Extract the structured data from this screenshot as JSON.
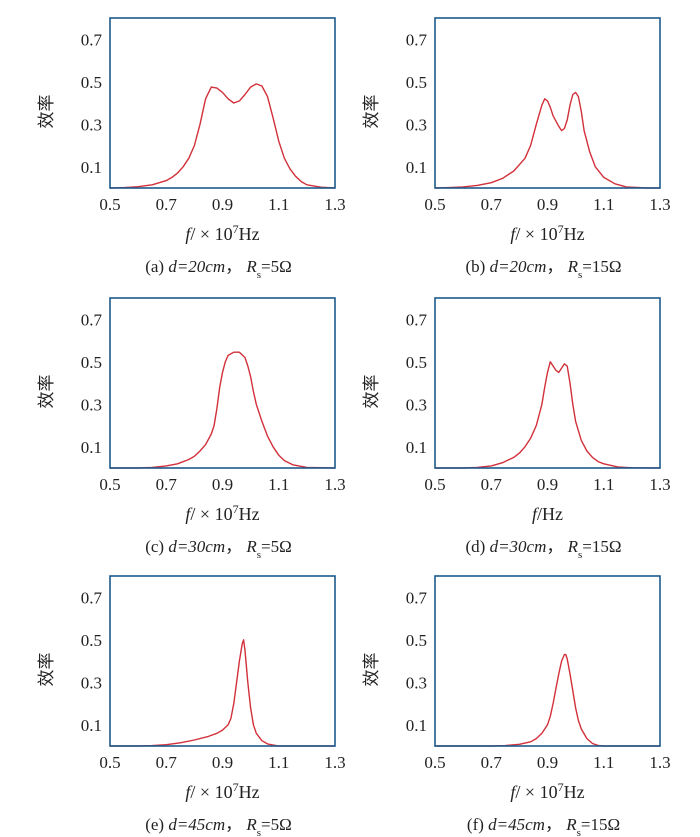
{
  "colors": {
    "frame": "#1c5a8c",
    "curve": "#d2303a"
  },
  "panels": [
    {
      "caption": {
        "label": "(a)",
        "d": "d=20cm",
        "r": "R",
        "rsub": "s",
        "rval": "=5Ω"
      },
      "xlabel": {
        "var": "f",
        "mult": "/ × 10",
        "exp": "7",
        "unit": "Hz"
      },
      "ylabel": "效率"
    },
    {
      "caption": {
        "label": "(b)",
        "d": "d=20cm",
        "r": "R",
        "rsub": "s",
        "rval": "=15Ω"
      },
      "xlabel": {
        "var": "f",
        "mult": "/ × 10",
        "exp": "7",
        "unit": "Hz"
      },
      "ylabel": "效率"
    },
    {
      "caption": {
        "label": "(c)",
        "d": "d=30cm",
        "r": "R",
        "rsub": "s",
        "rval": "=5Ω"
      },
      "xlabel": {
        "var": "f",
        "mult": "/ × 10",
        "exp": "7",
        "unit": "Hz"
      },
      "ylabel": "效率"
    },
    {
      "caption": {
        "label": "(d)",
        "d": "d=30cm",
        "r": "R",
        "rsub": "s",
        "rval": "=15Ω"
      },
      "xlabel": {
        "var": "f",
        "mult": "/",
        "exp": "",
        "unit": "Hz"
      },
      "ylabel": "效率"
    },
    {
      "caption": {
        "label": "(e)",
        "d": "d=45cm",
        "r": "R",
        "rsub": "s",
        "rval": "=5Ω"
      },
      "xlabel": {
        "var": "f",
        "mult": "/ × 10",
        "exp": "7",
        "unit": "Hz"
      },
      "ylabel": "效率"
    },
    {
      "caption": {
        "label": "(f)",
        "d": "d=45cm",
        "r": "R",
        "rsub": "s",
        "rval": "=15Ω"
      },
      "xlabel": {
        "var": "f",
        "mult": "/ × 10",
        "exp": "7",
        "unit": "Hz"
      },
      "ylabel": "效率"
    }
  ],
  "chart_data": [
    {
      "type": "line",
      "panel": "(a)",
      "xlim": [
        0.5,
        1.3
      ],
      "ylim": [
        0,
        0.8
      ],
      "xticks": [
        "0.5",
        "0.7",
        "0.9",
        "1.1",
        "1.3"
      ],
      "yticks": [
        "0.1",
        "0.3",
        "0.5",
        "0.7"
      ],
      "x": [
        0.5,
        0.55,
        0.6,
        0.65,
        0.7,
        0.72,
        0.74,
        0.76,
        0.78,
        0.8,
        0.82,
        0.84,
        0.86,
        0.88,
        0.9,
        0.92,
        0.94,
        0.96,
        0.98,
        1.0,
        1.02,
        1.04,
        1.06,
        1.08,
        1.1,
        1.12,
        1.14,
        1.16,
        1.18,
        1.2,
        1.25,
        1.3
      ],
      "y": [
        0.0,
        0.002,
        0.006,
        0.015,
        0.035,
        0.05,
        0.07,
        0.1,
        0.14,
        0.2,
        0.3,
        0.42,
        0.475,
        0.47,
        0.45,
        0.42,
        0.4,
        0.41,
        0.44,
        0.475,
        0.49,
        0.48,
        0.43,
        0.33,
        0.22,
        0.14,
        0.09,
        0.055,
        0.03,
        0.015,
        0.004,
        0.0
      ]
    },
    {
      "type": "line",
      "panel": "(b)",
      "xlim": [
        0.5,
        1.3
      ],
      "ylim": [
        0,
        0.8
      ],
      "xticks": [
        "0.5",
        "0.7",
        "0.9",
        "1.1",
        "1.3"
      ],
      "yticks": [
        "0.1",
        "0.3",
        "0.5",
        "0.7"
      ],
      "x": [
        0.5,
        0.55,
        0.6,
        0.65,
        0.7,
        0.74,
        0.78,
        0.82,
        0.84,
        0.86,
        0.88,
        0.89,
        0.9,
        0.91,
        0.92,
        0.94,
        0.95,
        0.96,
        0.97,
        0.98,
        0.99,
        1.0,
        1.01,
        1.02,
        1.03,
        1.05,
        1.07,
        1.1,
        1.14,
        1.18,
        1.25,
        1.3
      ],
      "y": [
        0.0,
        0.002,
        0.005,
        0.012,
        0.025,
        0.045,
        0.08,
        0.14,
        0.2,
        0.3,
        0.39,
        0.42,
        0.41,
        0.38,
        0.34,
        0.29,
        0.27,
        0.28,
        0.32,
        0.39,
        0.44,
        0.45,
        0.43,
        0.36,
        0.27,
        0.17,
        0.1,
        0.05,
        0.02,
        0.005,
        0.0,
        0.0
      ]
    },
    {
      "type": "line",
      "panel": "(c)",
      "xlim": [
        0.5,
        1.3
      ],
      "ylim": [
        0,
        0.8
      ],
      "xticks": [
        "0.5",
        "0.7",
        "0.9",
        "1.1",
        "1.3"
      ],
      "yticks": [
        "0.1",
        "0.3",
        "0.5",
        "0.7"
      ],
      "x": [
        0.5,
        0.6,
        0.65,
        0.7,
        0.74,
        0.78,
        0.8,
        0.82,
        0.84,
        0.86,
        0.87,
        0.88,
        0.89,
        0.9,
        0.91,
        0.92,
        0.94,
        0.96,
        0.98,
        0.99,
        1.0,
        1.01,
        1.02,
        1.04,
        1.06,
        1.08,
        1.1,
        1.12,
        1.15,
        1.2,
        1.3
      ],
      "y": [
        0.0,
        0.0,
        0.003,
        0.01,
        0.02,
        0.04,
        0.055,
        0.08,
        0.11,
        0.16,
        0.2,
        0.28,
        0.38,
        0.45,
        0.5,
        0.53,
        0.545,
        0.545,
        0.52,
        0.48,
        0.43,
        0.36,
        0.3,
        0.22,
        0.15,
        0.1,
        0.06,
        0.035,
        0.015,
        0.003,
        0.0
      ]
    },
    {
      "type": "line",
      "panel": "(d)",
      "xlim": [
        0.5,
        1.3
      ],
      "ylim": [
        0,
        0.8
      ],
      "xticks": [
        "0.5",
        "0.7",
        "0.9",
        "1.1",
        "1.3"
      ],
      "yticks": [
        "0.1",
        "0.3",
        "0.5",
        "0.7"
      ],
      "x": [
        0.5,
        0.6,
        0.65,
        0.7,
        0.74,
        0.78,
        0.8,
        0.82,
        0.84,
        0.86,
        0.88,
        0.89,
        0.9,
        0.91,
        0.92,
        0.93,
        0.94,
        0.95,
        0.96,
        0.97,
        0.98,
        0.99,
        1.0,
        1.02,
        1.04,
        1.06,
        1.08,
        1.1,
        1.15,
        1.2,
        1.3
      ],
      "y": [
        0.0,
        0.0,
        0.003,
        0.01,
        0.025,
        0.05,
        0.07,
        0.1,
        0.14,
        0.2,
        0.3,
        0.38,
        0.45,
        0.5,
        0.48,
        0.46,
        0.45,
        0.47,
        0.49,
        0.48,
        0.4,
        0.3,
        0.22,
        0.13,
        0.08,
        0.05,
        0.03,
        0.02,
        0.005,
        0.001,
        0.0
      ]
    },
    {
      "type": "line",
      "panel": "(e)",
      "xlim": [
        0.5,
        1.3
      ],
      "ylim": [
        0,
        0.8
      ],
      "xticks": [
        "0.5",
        "0.7",
        "0.9",
        "1.1",
        "1.3"
      ],
      "yticks": [
        "0.1",
        "0.3",
        "0.5",
        "0.7"
      ],
      "x": [
        0.5,
        0.6,
        0.65,
        0.7,
        0.75,
        0.8,
        0.85,
        0.88,
        0.9,
        0.92,
        0.93,
        0.94,
        0.95,
        0.96,
        0.97,
        0.975,
        0.98,
        0.99,
        1.0,
        1.01,
        1.02,
        1.04,
        1.06,
        1.08,
        1.1,
        1.2,
        1.3
      ],
      "y": [
        0.0,
        0.0,
        0.002,
        0.006,
        0.015,
        0.028,
        0.045,
        0.06,
        0.075,
        0.1,
        0.13,
        0.2,
        0.3,
        0.4,
        0.48,
        0.5,
        0.45,
        0.3,
        0.18,
        0.1,
        0.06,
        0.025,
        0.01,
        0.004,
        0.0,
        0.0,
        0.0
      ]
    },
    {
      "type": "line",
      "panel": "(f)",
      "xlim": [
        0.5,
        1.3
      ],
      "ylim": [
        0,
        0.8
      ],
      "xticks": [
        "0.5",
        "0.7",
        "0.9",
        "1.1",
        "1.3"
      ],
      "yticks": [
        "0.1",
        "0.3",
        "0.5",
        "0.7"
      ],
      "x": [
        0.5,
        0.6,
        0.7,
        0.75,
        0.8,
        0.84,
        0.86,
        0.88,
        0.9,
        0.91,
        0.92,
        0.93,
        0.94,
        0.95,
        0.96,
        0.965,
        0.97,
        0.98,
        0.99,
        1.0,
        1.01,
        1.02,
        1.04,
        1.06,
        1.08,
        1.1,
        1.2,
        1.3
      ],
      "y": [
        0.0,
        0.0,
        0.0,
        0.002,
        0.008,
        0.02,
        0.035,
        0.06,
        0.1,
        0.14,
        0.2,
        0.27,
        0.34,
        0.4,
        0.43,
        0.43,
        0.41,
        0.34,
        0.26,
        0.18,
        0.12,
        0.08,
        0.035,
        0.012,
        0.003,
        0.0,
        0.0,
        0.0
      ]
    }
  ]
}
